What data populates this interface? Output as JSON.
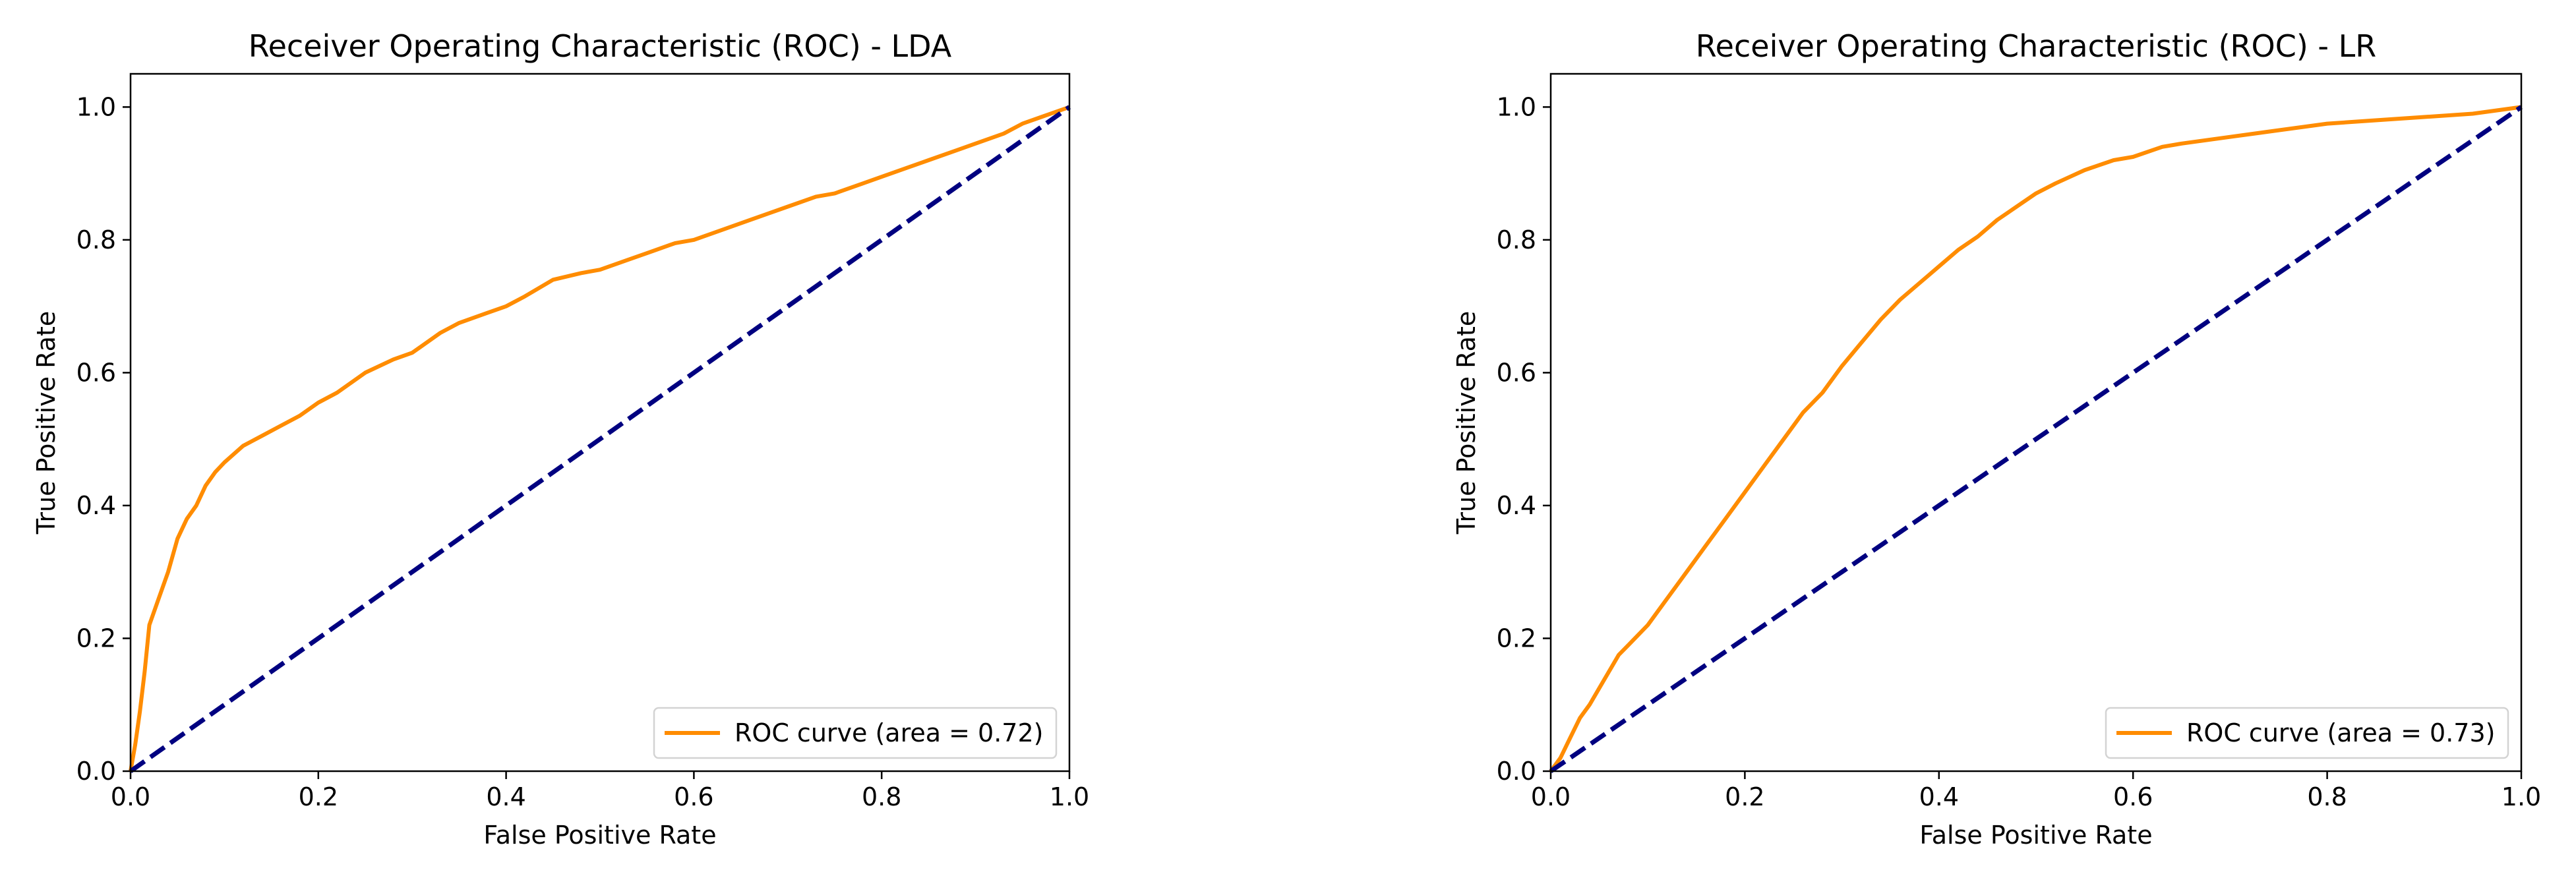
{
  "chart_data": [
    {
      "type": "line",
      "title": "Receiver Operating Characteristic (ROC) - LDA",
      "xlabel": "False Positive Rate",
      "ylabel": "True Positive Rate",
      "xlim": [
        0.0,
        1.0
      ],
      "ylim": [
        0.0,
        1.05
      ],
      "xticks": [
        "0.0",
        "0.2",
        "0.4",
        "0.6",
        "0.8",
        "1.0"
      ],
      "yticks": [
        "0.0",
        "0.2",
        "0.4",
        "0.6",
        "0.8",
        "1.0"
      ],
      "legend_position": "lower-right",
      "series": [
        {
          "name": "ROC curve (area = 0.72)",
          "color": "#ff8c00",
          "style": "solid",
          "x": [
            0.0,
            0.005,
            0.01,
            0.015,
            0.02,
            0.03,
            0.04,
            0.05,
            0.06,
            0.07,
            0.08,
            0.09,
            0.1,
            0.12,
            0.14,
            0.16,
            0.18,
            0.2,
            0.22,
            0.25,
            0.28,
            0.3,
            0.33,
            0.35,
            0.38,
            0.4,
            0.42,
            0.45,
            0.48,
            0.5,
            0.53,
            0.55,
            0.58,
            0.6,
            0.63,
            0.65,
            0.68,
            0.7,
            0.73,
            0.75,
            0.78,
            0.8,
            0.83,
            0.85,
            0.88,
            0.9,
            0.93,
            0.95,
            0.97,
            0.99,
            1.0
          ],
          "y": [
            0.0,
            0.04,
            0.09,
            0.15,
            0.22,
            0.26,
            0.3,
            0.35,
            0.38,
            0.4,
            0.43,
            0.45,
            0.465,
            0.49,
            0.505,
            0.52,
            0.535,
            0.555,
            0.57,
            0.6,
            0.62,
            0.63,
            0.66,
            0.675,
            0.69,
            0.7,
            0.715,
            0.74,
            0.75,
            0.755,
            0.77,
            0.78,
            0.795,
            0.8,
            0.815,
            0.825,
            0.84,
            0.85,
            0.865,
            0.87,
            0.885,
            0.895,
            0.91,
            0.92,
            0.935,
            0.945,
            0.96,
            0.975,
            0.985,
            0.995,
            1.0
          ]
        },
        {
          "name": "",
          "color": "#000080",
          "style": "dashed",
          "x": [
            0.0,
            1.0
          ],
          "y": [
            0.0,
            1.0
          ]
        }
      ]
    },
    {
      "type": "line",
      "title": "Receiver Operating Characteristic (ROC) - LR",
      "xlabel": "False Positive Rate",
      "ylabel": "True Positive Rate",
      "xlim": [
        0.0,
        1.0
      ],
      "ylim": [
        0.0,
        1.05
      ],
      "xticks": [
        "0.0",
        "0.2",
        "0.4",
        "0.6",
        "0.8",
        "1.0"
      ],
      "yticks": [
        "0.0",
        "0.2",
        "0.4",
        "0.6",
        "0.8",
        "1.0"
      ],
      "legend_position": "lower-right",
      "series": [
        {
          "name": "ROC curve (area = 0.73)",
          "color": "#ff8c00",
          "style": "solid",
          "x": [
            0.0,
            0.01,
            0.02,
            0.03,
            0.04,
            0.05,
            0.06,
            0.07,
            0.08,
            0.1,
            0.12,
            0.14,
            0.16,
            0.18,
            0.2,
            0.22,
            0.24,
            0.26,
            0.28,
            0.3,
            0.32,
            0.34,
            0.36,
            0.38,
            0.4,
            0.42,
            0.44,
            0.46,
            0.48,
            0.5,
            0.52,
            0.55,
            0.58,
            0.6,
            0.63,
            0.65,
            0.7,
            0.75,
            0.8,
            0.85,
            0.9,
            0.95,
            1.0
          ],
          "y": [
            0.0,
            0.02,
            0.05,
            0.08,
            0.1,
            0.125,
            0.15,
            0.175,
            0.19,
            0.22,
            0.26,
            0.3,
            0.34,
            0.38,
            0.42,
            0.46,
            0.5,
            0.54,
            0.57,
            0.61,
            0.645,
            0.68,
            0.71,
            0.735,
            0.76,
            0.785,
            0.805,
            0.83,
            0.85,
            0.87,
            0.885,
            0.905,
            0.92,
            0.925,
            0.94,
            0.945,
            0.955,
            0.965,
            0.975,
            0.98,
            0.985,
            0.99,
            1.0
          ]
        },
        {
          "name": "",
          "color": "#000080",
          "style": "dashed",
          "x": [
            0.0,
            1.0
          ],
          "y": [
            0.0,
            1.0
          ]
        }
      ]
    }
  ]
}
